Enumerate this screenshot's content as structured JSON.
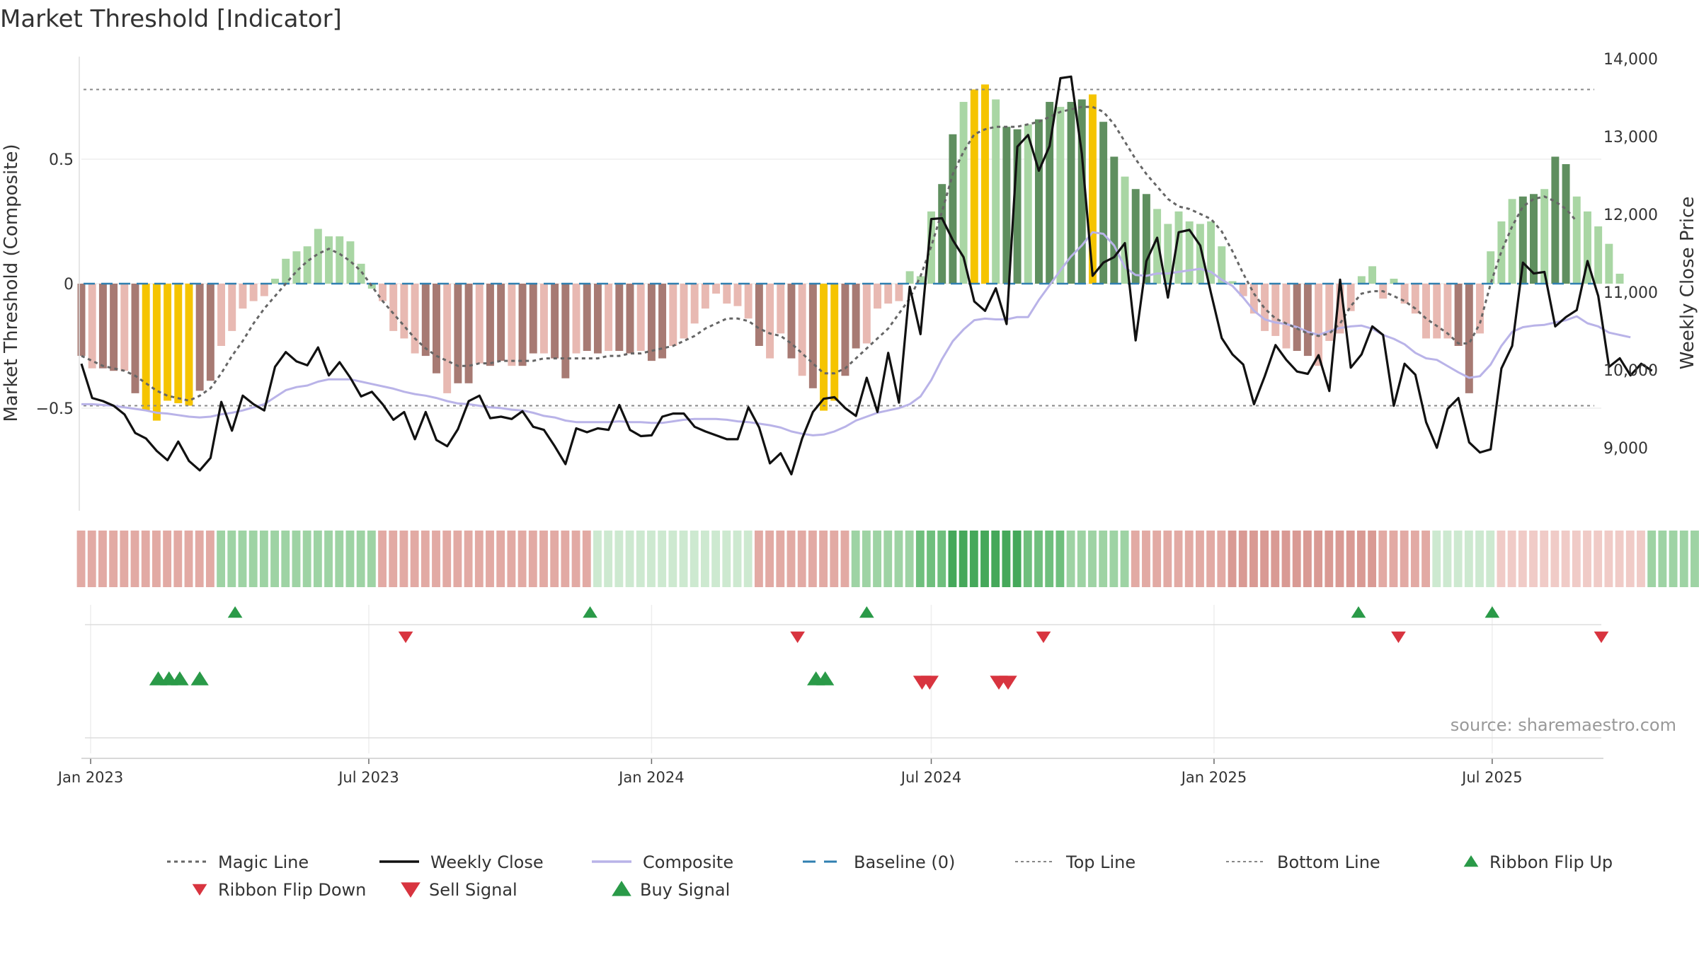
{
  "chart_data": {
    "type": "bar",
    "title": "Market Threshold [Indicator]",
    "ylabel_left": "Market Threshold (Composite)",
    "ylabel_right": "Weekly Close Price",
    "ylim_left": [
      -0.91,
      0.9
    ],
    "ylim_right": [
      8000,
      14000
    ],
    "yticks_left": [
      "0.5",
      "0",
      "−0.5"
    ],
    "yticks_left_values": [
      0.5,
      0,
      -0.5
    ],
    "yticks_right": [
      "14,000",
      "13,000",
      "12,000",
      "11,000",
      "10,000",
      "9,000"
    ],
    "yticks_right_values": [
      14000,
      13000,
      12000,
      11000,
      10000,
      9000
    ],
    "xrange": [
      "2022-12-26",
      "2025-09-10"
    ],
    "xticks": [
      {
        "label": "Jan 2023",
        "date": "2023-01-01"
      },
      {
        "label": "Jul 2023",
        "date": "2023-07-01"
      },
      {
        "label": "Jan 2024",
        "date": "2024-01-01"
      },
      {
        "label": "Jul 2024",
        "date": "2024-07-01"
      },
      {
        "label": "Jan 2025",
        "date": "2025-01-01"
      },
      {
        "label": "Jul 2025",
        "date": "2025-07-01"
      }
    ],
    "top_line": 0.78,
    "bottom_line": -0.49,
    "baseline": 0,
    "source": "source: sharemaestro.com",
    "colors": {
      "pos_strong": "#5f8f5f",
      "pos_weak": "#a9d6a4",
      "neg_strong": "#a77a73",
      "neg_weak": "#e8b9b2",
      "highlight": "#f5c400",
      "weekly_close": "#111111",
      "composite": "#b9b3e8",
      "magic_line": "#666666",
      "baseline": "#2f7fb0",
      "threshold_lines": "#888888",
      "buy": "#2a9a48",
      "sell": "#d8343f"
    },
    "bar_start_date": "2022-12-26",
    "bars": [
      -0.29,
      -0.34,
      -0.34,
      -0.35,
      -0.35,
      -0.44,
      -0.51,
      -0.55,
      -0.47,
      -0.48,
      -0.49,
      -0.43,
      -0.39,
      -0.25,
      -0.19,
      -0.1,
      -0.07,
      -0.05,
      0.02,
      0.1,
      0.13,
      0.15,
      0.22,
      0.19,
      0.19,
      0.17,
      0.08,
      -0.02,
      -0.07,
      -0.19,
      -0.22,
      -0.28,
      -0.29,
      -0.36,
      -0.44,
      -0.4,
      -0.4,
      -0.32,
      -0.33,
      -0.31,
      -0.33,
      -0.33,
      -0.28,
      -0.28,
      -0.3,
      -0.38,
      -0.28,
      -0.27,
      -0.28,
      -0.27,
      -0.27,
      -0.28,
      -0.27,
      -0.31,
      -0.3,
      -0.25,
      -0.22,
      -0.16,
      -0.1,
      -0.04,
      -0.08,
      -0.09,
      -0.14,
      -0.25,
      -0.3,
      -0.2,
      -0.3,
      -0.37,
      -0.42,
      -0.51,
      -0.47,
      -0.37,
      -0.26,
      -0.24,
      -0.1,
      -0.08,
      -0.07,
      0.05,
      0.03,
      0.29,
      0.4,
      0.6,
      0.73,
      0.78,
      0.8,
      0.74,
      0.63,
      0.62,
      0.64,
      0.66,
      0.73,
      0.71,
      0.73,
      0.74,
      0.76,
      0.65,
      0.51,
      0.43,
      0.38,
      0.36,
      0.3,
      0.24,
      0.29,
      0.25,
      0.24,
      0.25,
      0.15,
      0.01,
      -0.05,
      -0.12,
      -0.19,
      -0.21,
      -0.26,
      -0.27,
      -0.29,
      -0.33,
      -0.23,
      -0.2,
      -0.11,
      0.03,
      0.07,
      -0.06,
      0.02,
      -0.08,
      -0.12,
      -0.22,
      -0.22,
      -0.22,
      -0.25,
      -0.44,
      -0.2,
      0.13,
      0.25,
      0.34,
      0.35,
      0.36,
      0.38,
      0.51,
      0.48,
      0.35,
      0.29,
      0.23,
      0.16,
      0.04
    ],
    "close_start_date": "2022-12-26",
    "weekly_close": [
      10080,
      9640,
      9600,
      9540,
      9430,
      9190,
      9120,
      8960,
      8840,
      9080,
      8830,
      8710,
      8870,
      9590,
      9220,
      9670,
      9560,
      9480,
      10040,
      10230,
      10110,
      10060,
      10290,
      9930,
      10100,
      9900,
      9660,
      9720,
      9560,
      9360,
      9460,
      9110,
      9460,
      9100,
      9020,
      9240,
      9600,
      9670,
      9380,
      9400,
      9370,
      9470,
      9270,
      9230,
      9020,
      8790,
      9250,
      9200,
      9250,
      9230,
      9550,
      9230,
      9150,
      9160,
      9400,
      9440,
      9440,
      9270,
      9210,
      9160,
      9110,
      9110,
      9520,
      9260,
      8800,
      8930,
      8660,
      9120,
      9460,
      9630,
      9650,
      9510,
      9410,
      9900,
      9460,
      10220,
      9580,
      11070,
      10460,
      11940,
      11950,
      11670,
      11450,
      10880,
      10760,
      11050,
      10590,
      12870,
      13020,
      12560,
      12880,
      13750,
      13770,
      12780,
      11210,
      11380,
      11450,
      11630,
      10380,
      11400,
      11700,
      10930,
      11770,
      11800,
      11600,
      10990,
      10410,
      10200,
      10070,
      9560,
      9920,
      10320,
      10130,
      9980,
      9950,
      10190,
      9730,
      11160,
      10030,
      10200,
      10560,
      10450,
      9540,
      10080,
      9940,
      9330,
      9000,
      9500,
      9640,
      9070,
      8940,
      8980,
      10020,
      10310,
      11380,
      11240,
      11260,
      10560,
      10680,
      10770,
      11400,
      10950,
      10040,
      10150,
      9930,
      10080,
      9990
    ],
    "composite": [
      9560,
      9560,
      9550,
      9540,
      9520,
      9500,
      9480,
      9450,
      9440,
      9420,
      9400,
      9390,
      9400,
      9430,
      9450,
      9480,
      9520,
      9560,
      9650,
      9740,
      9780,
      9800,
      9850,
      9880,
      9880,
      9880,
      9850,
      9820,
      9790,
      9760,
      9720,
      9690,
      9670,
      9640,
      9600,
      9570,
      9560,
      9540,
      9520,
      9510,
      9490,
      9480,
      9450,
      9410,
      9390,
      9350,
      9330,
      9330,
      9330,
      9330,
      9340,
      9330,
      9330,
      9320,
      9320,
      9340,
      9360,
      9370,
      9370,
      9370,
      9360,
      9340,
      9330,
      9310,
      9290,
      9260,
      9210,
      9180,
      9160,
      9170,
      9210,
      9270,
      9350,
      9400,
      9450,
      9480,
      9510,
      9560,
      9660,
      9870,
      10140,
      10370,
      10520,
      10640,
      10660,
      10650,
      10650,
      10680,
      10680,
      10900,
      11090,
      11280,
      11460,
      11600,
      11770,
      11750,
      11600,
      11320,
      11220,
      11210,
      11240,
      11240,
      11260,
      11280,
      11300,
      11260,
      11160,
      11080,
      10930,
      10760,
      10650,
      10610,
      10590,
      10550,
      10490,
      10450,
      10500,
      10540,
      10560,
      10570,
      10530,
      10450,
      10400,
      10330,
      10220,
      10150,
      10130,
      10050,
      9970,
      9900,
      9920,
      10070,
      10310,
      10490,
      10550,
      10570,
      10580,
      10610,
      10640,
      10690,
      10600,
      10560,
      10480,
      10450,
      10420
    ],
    "magic_line": [
      -0.29,
      -0.31,
      -0.33,
      -0.34,
      -0.35,
      -0.37,
      -0.4,
      -0.43,
      -0.45,
      -0.46,
      -0.47,
      -0.45,
      -0.42,
      -0.36,
      -0.29,
      -0.23,
      -0.16,
      -0.1,
      -0.05,
      0.0,
      0.05,
      0.09,
      0.12,
      0.14,
      0.12,
      0.09,
      0.05,
      -0.01,
      -0.07,
      -0.12,
      -0.17,
      -0.22,
      -0.26,
      -0.29,
      -0.31,
      -0.33,
      -0.33,
      -0.32,
      -0.32,
      -0.31,
      -0.31,
      -0.31,
      -0.31,
      -0.3,
      -0.3,
      -0.3,
      -0.3,
      -0.3,
      -0.3,
      -0.29,
      -0.29,
      -0.28,
      -0.28,
      -0.27,
      -0.26,
      -0.25,
      -0.23,
      -0.21,
      -0.18,
      -0.16,
      -0.14,
      -0.14,
      -0.15,
      -0.18,
      -0.2,
      -0.21,
      -0.24,
      -0.28,
      -0.32,
      -0.36,
      -0.36,
      -0.34,
      -0.3,
      -0.26,
      -0.22,
      -0.18,
      -0.12,
      -0.06,
      0.03,
      0.15,
      0.29,
      0.44,
      0.53,
      0.6,
      0.62,
      0.63,
      0.63,
      0.63,
      0.64,
      0.65,
      0.67,
      0.69,
      0.7,
      0.71,
      0.71,
      0.69,
      0.64,
      0.57,
      0.5,
      0.44,
      0.39,
      0.34,
      0.31,
      0.3,
      0.28,
      0.26,
      0.21,
      0.13,
      0.04,
      -0.04,
      -0.1,
      -0.14,
      -0.16,
      -0.18,
      -0.2,
      -0.21,
      -0.2,
      -0.16,
      -0.09,
      -0.04,
      -0.03,
      -0.03,
      -0.05,
      -0.07,
      -0.1,
      -0.14,
      -0.17,
      -0.2,
      -0.24,
      -0.24,
      -0.16,
      0.0,
      0.13,
      0.23,
      0.31,
      0.34,
      0.35,
      0.33,
      0.3,
      0.25
    ],
    "ribbon_start_date": "2022-12-26",
    "ribbon": [
      -2,
      -2,
      -2,
      -2,
      -2,
      -2,
      -2,
      -2,
      -2,
      -2,
      -2,
      -2,
      -2,
      2,
      2,
      2,
      2,
      2,
      2,
      2,
      2,
      2,
      2,
      2,
      2,
      2,
      2,
      2,
      -2,
      -2,
      -2,
      -2,
      -2,
      -2,
      -2,
      -2,
      -2,
      -2,
      -2,
      -2,
      -2,
      -2,
      -2,
      -2,
      -2,
      -2,
      -2,
      -2,
      1,
      1,
      1,
      1,
      1,
      1,
      1,
      1,
      1,
      1,
      1,
      1,
      1,
      1,
      1,
      -2,
      -2,
      -2,
      -2,
      -2,
      -2,
      -2,
      -2,
      -2,
      2,
      2,
      2,
      2,
      2,
      2,
      3,
      3,
      3,
      4,
      4,
      4,
      4,
      4,
      4,
      4,
      3,
      3,
      3,
      3,
      2,
      2,
      2,
      2,
      2,
      2,
      -2,
      -2,
      -2,
      -2,
      -2,
      -2,
      -2,
      -2,
      -2,
      -3,
      -3,
      -3,
      -3,
      -3,
      -3,
      -3,
      -3,
      -3,
      -3,
      -3,
      -3,
      -3,
      -3,
      -2,
      -2,
      -2,
      -2,
      -2,
      1,
      1,
      1,
      1,
      1,
      1,
      -1,
      -1,
      -1,
      -1,
      -1,
      -1,
      -1,
      -1,
      -1,
      -1,
      -1,
      -1,
      -1,
      -1,
      2,
      2,
      2,
      2,
      2,
      2,
      2,
      2,
      2,
      2,
      2,
      2,
      -1
    ],
    "ribbon_flip_up": [
      "2023-04-05",
      "2023-11-22",
      "2024-05-20",
      "2025-04-05",
      "2025-07-01"
    ],
    "ribbon_flip_down": [
      "2023-07-25",
      "2024-04-05",
      "2024-09-12",
      "2025-05-01",
      "2025-09-10"
    ],
    "buy_signal": [
      "2023-02-14",
      "2023-02-21",
      "2023-02-28",
      "2023-03-13",
      "2024-04-17",
      "2024-04-23"
    ],
    "sell_signal": [
      "2024-06-25",
      "2024-06-30",
      "2024-08-14",
      "2024-08-20"
    ],
    "legend": [
      {
        "label": "Magic Line",
        "kind": "dotted",
        "color": "#666666"
      },
      {
        "label": "Weekly Close",
        "kind": "line",
        "color": "#111111"
      },
      {
        "label": "Composite",
        "kind": "line",
        "color": "#b9b3e8"
      },
      {
        "label": "Baseline (0)",
        "kind": "dashed",
        "color": "#2f7fb0"
      },
      {
        "label": "Top Line",
        "kind": "dotted-thin",
        "color": "#888888"
      },
      {
        "label": "Bottom Line",
        "kind": "dotted-thin",
        "color": "#888888"
      },
      {
        "label": "Ribbon Flip Up",
        "kind": "tri-up",
        "color": "#2a9a48"
      },
      {
        "label": "Ribbon Flip Down",
        "kind": "tri-down",
        "color": "#d8343f"
      },
      {
        "label": "Sell Signal",
        "kind": "tri-down-big",
        "color": "#d8343f"
      },
      {
        "label": "Buy Signal",
        "kind": "tri-up-big",
        "color": "#2a9a48"
      }
    ]
  }
}
